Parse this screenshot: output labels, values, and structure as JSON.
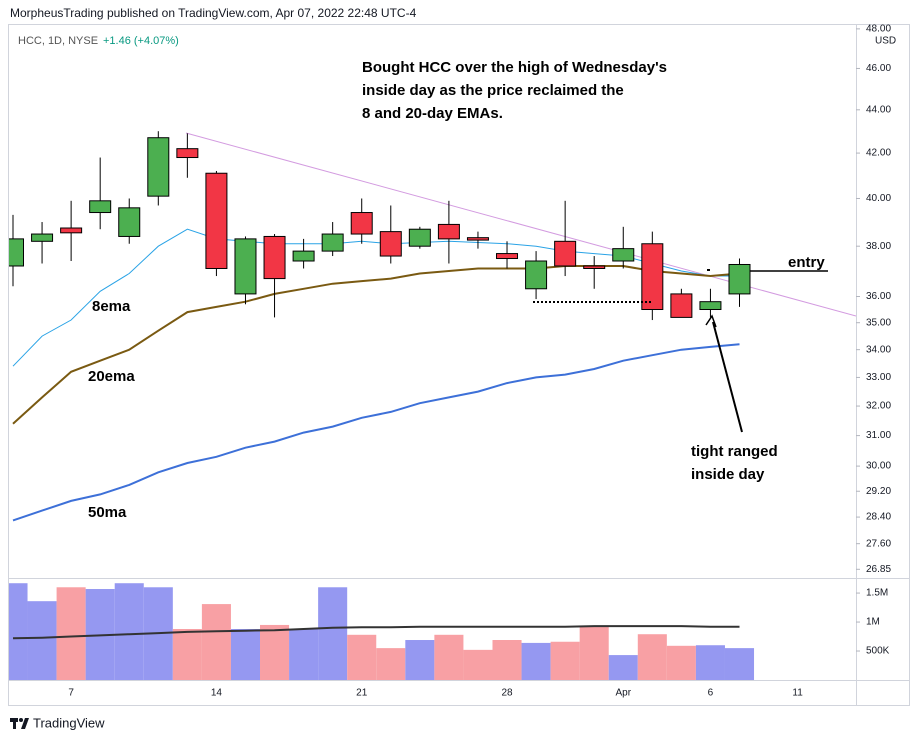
{
  "chart_data": {
    "type": "candlestick",
    "header": "MorpheusTrading published on TradingView.com, Apr 07, 2022 22:48 UTC-4",
    "legend": {
      "symbol": "HCC, 1D, NYSE",
      "change": "+1.46 (+4.07%)"
    },
    "currency": "USD",
    "annotations": {
      "note": [
        "Bought HCC over the high of Wednesday's",
        "inside day as the price reclaimed the",
        "8 and 20-day EMAs."
      ],
      "entry": "entry",
      "inside_day": [
        "tight ranged",
        "inside day"
      ]
    },
    "footer": "TradingView",
    "log_scale": true,
    "up_color": "#4caf50",
    "down_color": "#f23645",
    "categories": [
      null,
      null,
      "7",
      null,
      null,
      null,
      null,
      "14",
      null,
      null,
      null,
      null,
      "21",
      null,
      null,
      null,
      null,
      "28",
      null,
      null,
      null,
      "Apr",
      null,
      null,
      "6",
      null,
      null,
      "11"
    ],
    "open": [
      37.2,
      38.2,
      38.75,
      39.4,
      38.4,
      40.1,
      42.2,
      41.1,
      36.1,
      38.4,
      37.4,
      37.8,
      39.4,
      38.6,
      38.0,
      38.9,
      38.35,
      37.7,
      36.3,
      38.2,
      37.2,
      37.4,
      38.1,
      36.1,
      35.5,
      36.1,
      null,
      null
    ],
    "high": [
      39.3,
      39.0,
      39.9,
      41.8,
      40.0,
      43.0,
      42.9,
      41.2,
      38.4,
      38.5,
      38.3,
      39.0,
      40.0,
      39.7,
      38.8,
      39.9,
      38.6,
      38.2,
      37.8,
      39.9,
      37.6,
      38.8,
      38.6,
      36.3,
      36.3,
      37.5,
      null,
      null
    ],
    "low": [
      36.4,
      37.3,
      37.4,
      38.7,
      38.1,
      39.7,
      40.9,
      36.8,
      35.7,
      35.2,
      37.1,
      37.6,
      38.1,
      37.3,
      37.9,
      37.3,
      37.9,
      37.1,
      35.9,
      36.8,
      36.3,
      37.1,
      35.1,
      35.2,
      35.2,
      35.6,
      null,
      null
    ],
    "close": [
      38.3,
      38.5,
      38.55,
      39.9,
      39.6,
      42.7,
      41.8,
      37.1,
      38.3,
      36.7,
      37.8,
      38.5,
      38.5,
      37.6,
      38.7,
      38.3,
      38.25,
      37.5,
      37.4,
      37.2,
      37.1,
      37.9,
      35.5,
      35.2,
      35.8,
      37.26,
      null,
      null
    ],
    "series": [
      {
        "name": "8ema",
        "color": "#2aa3e6",
        "width": 1,
        "values": [
          33.4,
          34.5,
          35.1,
          36.2,
          36.9,
          38.0,
          38.7,
          38.3,
          38.2,
          38.1,
          38.1,
          38.1,
          38.2,
          38.1,
          38.15,
          38.2,
          38.15,
          38.1,
          38.0,
          37.8,
          37.7,
          37.6,
          37.3,
          37.0,
          36.8,
          36.8,
          null,
          null
        ]
      },
      {
        "name": "20ema",
        "color": "#7a5a12",
        "width": 2,
        "values": [
          31.4,
          32.3,
          33.2,
          33.6,
          34.0,
          34.7,
          35.4,
          35.6,
          35.8,
          36.1,
          36.3,
          36.5,
          36.6,
          36.7,
          36.9,
          37.0,
          37.1,
          37.1,
          37.1,
          37.2,
          37.2,
          37.2,
          37.0,
          36.9,
          36.8,
          36.9,
          null,
          null
        ]
      },
      {
        "name": "50ma",
        "color": "#3d70d8",
        "width": 2,
        "values": [
          28.3,
          28.6,
          28.9,
          29.1,
          29.4,
          29.8,
          30.1,
          30.3,
          30.6,
          30.8,
          31.1,
          31.3,
          31.6,
          31.8,
          32.1,
          32.3,
          32.5,
          32.8,
          33.0,
          33.1,
          33.3,
          33.6,
          33.8,
          34.0,
          34.1,
          34.2,
          null,
          null
        ]
      }
    ],
    "ylim": [
      26.6,
      48.2
    ],
    "yticks": [
      {
        "value": 48,
        "label": "48.00"
      },
      {
        "value": 46,
        "label": "46.00"
      },
      {
        "value": 44,
        "label": "44.00"
      },
      {
        "value": 42,
        "label": "42.00"
      },
      {
        "value": 40,
        "label": "40.00"
      },
      {
        "value": 38,
        "label": "38.00"
      },
      {
        "value": 36,
        "label": "36.00"
      },
      {
        "value": 35,
        "label": "35.00"
      },
      {
        "value": 34,
        "label": "34.00"
      },
      {
        "value": 33,
        "label": "33.00"
      },
      {
        "value": 32,
        "label": "32.00"
      },
      {
        "value": 31,
        "label": "31.00"
      },
      {
        "value": 30,
        "label": "30.00"
      },
      {
        "value": 29.2,
        "label": "29.20"
      },
      {
        "value": 28.4,
        "label": "28.40"
      },
      {
        "value": 27.6,
        "label": "27.60"
      },
      {
        "value": 26.85,
        "label": "26.85"
      }
    ],
    "volume": {
      "up_color": "#9598f1",
      "down_color": "#f8a0a4",
      "ma_color": "#333333",
      "values": [
        1670000,
        1360000,
        1600000,
        1570000,
        1670000,
        1600000,
        880000,
        1310000,
        880000,
        950000,
        880000,
        1600000,
        780000,
        550000,
        690000,
        780000,
        520000,
        690000,
        640000,
        660000,
        930000,
        430000,
        790000,
        590000,
        600000,
        550000,
        null,
        null
      ],
      "ma": [
        720000,
        730000,
        750000,
        770000,
        790000,
        810000,
        830000,
        840000,
        850000,
        860000,
        880000,
        900000,
        910000,
        910000,
        920000,
        920000,
        920000,
        920000,
        920000,
        920000,
        930000,
        930000,
        930000,
        930000,
        920000,
        920000,
        null,
        null
      ],
      "ylim": [
        0,
        1760000
      ],
      "yticks": [
        {
          "value": 500000,
          "label": "500K"
        },
        {
          "value": 1000000,
          "label": "1M"
        },
        {
          "value": 1500000,
          "label": "1.5M"
        }
      ]
    }
  }
}
